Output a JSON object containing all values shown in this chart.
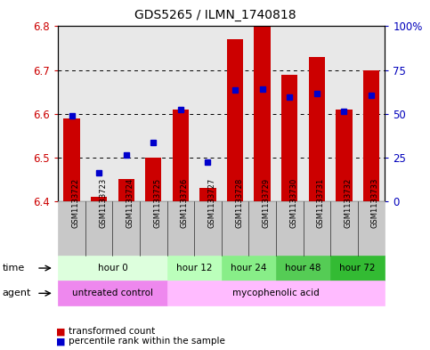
{
  "title": "GDS5265 / ILMN_1740818",
  "samples": [
    "GSM1133722",
    "GSM1133723",
    "GSM1133724",
    "GSM1133725",
    "GSM1133726",
    "GSM1133727",
    "GSM1133728",
    "GSM1133729",
    "GSM1133730",
    "GSM1133731",
    "GSM1133732",
    "GSM1133733"
  ],
  "bar_tops": [
    6.59,
    6.41,
    6.45,
    6.5,
    6.61,
    6.43,
    6.77,
    6.8,
    6.69,
    6.73,
    6.61,
    6.7
  ],
  "bar_bottom": 6.4,
  "blue_vals": [
    6.595,
    6.465,
    6.505,
    6.535,
    6.61,
    6.49,
    6.655,
    6.656,
    6.638,
    6.647,
    6.605,
    6.643
  ],
  "ylim_left": [
    6.4,
    6.8
  ],
  "ylim_right": [
    0,
    100
  ],
  "yticks_left": [
    6.4,
    6.5,
    6.6,
    6.7,
    6.8
  ],
  "yticks_right": [
    0,
    25,
    50,
    75,
    100
  ],
  "ytick_labels_right": [
    "0",
    "25",
    "50",
    "75",
    "100%"
  ],
  "bar_color": "#cc0000",
  "blue_color": "#0000cc",
  "plot_bg": "#e8e8e8",
  "time_groups": [
    {
      "label": "hour 0",
      "start": 0,
      "end": 4,
      "color": "#ddffdd"
    },
    {
      "label": "hour 12",
      "start": 4,
      "end": 6,
      "color": "#bbffbb"
    },
    {
      "label": "hour 24",
      "start": 6,
      "end": 8,
      "color": "#88ee88"
    },
    {
      "label": "hour 48",
      "start": 8,
      "end": 10,
      "color": "#55cc55"
    },
    {
      "label": "hour 72",
      "start": 10,
      "end": 12,
      "color": "#33bb33"
    }
  ],
  "agent_groups": [
    {
      "label": "untreated control",
      "start": 0,
      "end": 4,
      "color": "#ee88ee"
    },
    {
      "label": "mycophenolic acid",
      "start": 4,
      "end": 12,
      "color": "#ffbbff"
    }
  ],
  "tick_color_left": "#cc0000",
  "tick_color_right": "#0000bb",
  "gridline_color": "#000000",
  "spine_color": "#000000"
}
